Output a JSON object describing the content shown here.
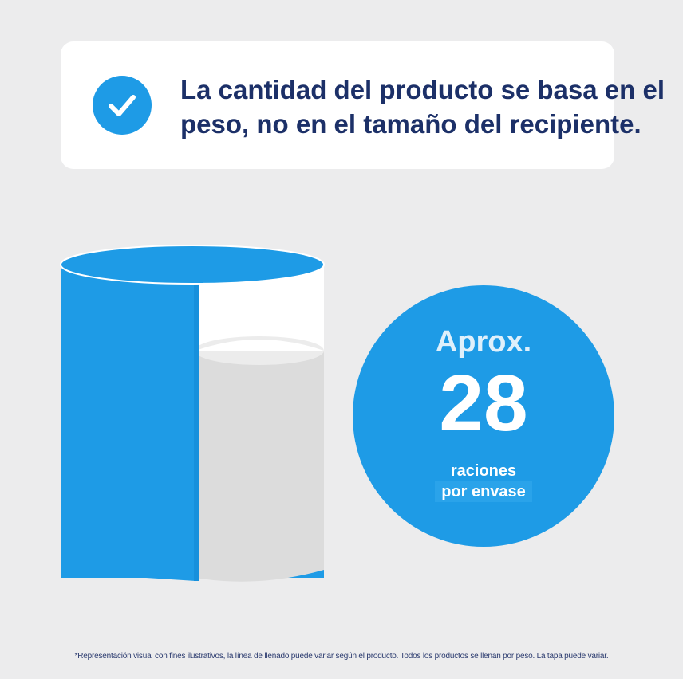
{
  "banner": {
    "icon": "checkmark-icon",
    "text": "La cantidad del producto se basa en el peso, no en el tamaño del recipiente."
  },
  "illustration": {
    "icon": "container-fill-level-illustration",
    "fill_level": 0.7
  },
  "badge": {
    "prefix": "Aprox.",
    "number": "28",
    "line1": "raciones",
    "line2": "por envase"
  },
  "footnote": "*Representación visual con fines ilustrativos, la línea de llenado puede variar según el producto. Todos los productos se llenan por peso. La tapa puede variar.",
  "colors": {
    "background": "#ececed",
    "brand_blue": "#1e9be6",
    "navy_text": "#1c3068",
    "fill_grey": "#dcdcdc",
    "white": "#ffffff"
  }
}
